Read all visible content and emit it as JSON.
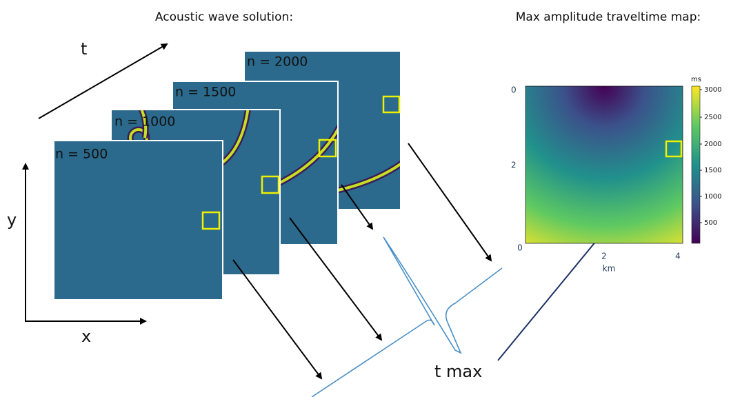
{
  "titles": {
    "left": "Acoustic wave solution:",
    "right": "Max amplitude traveltime map:"
  },
  "axes": {
    "t": "t",
    "y": "y",
    "x": "x"
  },
  "frames": [
    {
      "label": "n = 2000"
    },
    {
      "label": "n = 1500"
    },
    {
      "label": "n = 1000"
    },
    {
      "label": "n = 500"
    }
  ],
  "waveform": {
    "label": "t max"
  },
  "map": {
    "unit": "ms",
    "colorbar_ticks": [
      3000,
      2500,
      2000,
      1500,
      1000,
      500
    ],
    "y_ticks": [
      0,
      2
    ],
    "x_ticks": [
      0,
      2,
      4
    ],
    "x_unit": "km"
  }
}
